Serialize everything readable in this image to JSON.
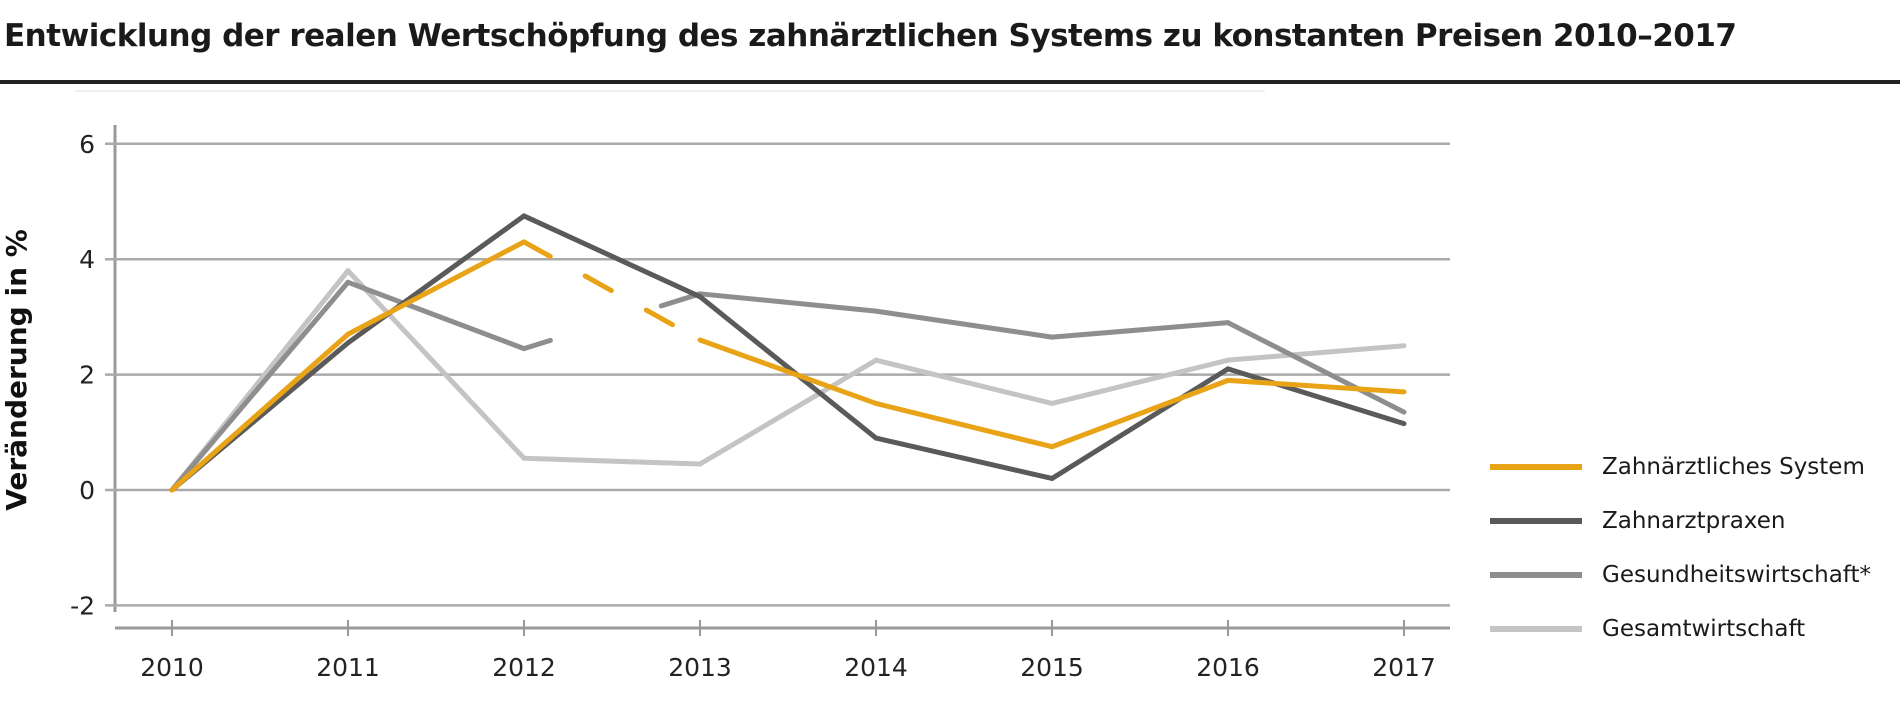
{
  "chart_data": {
    "type": "line",
    "title": "Entwicklung der realen Wertschöpfung des zahnärztlichen Systems zu konstanten Preisen 2010–2017",
    "xlabel": "",
    "ylabel": "Veränderung in %",
    "x": [
      "2010",
      "2011",
      "2012",
      "2013",
      "2014",
      "2015",
      "2016",
      "2017"
    ],
    "ylim": [
      -2,
      6
    ],
    "yticks": [
      "-2",
      "0",
      "2",
      "4",
      "6"
    ],
    "grid": true,
    "legend_position": "right",
    "series": [
      {
        "name": "Zahnärztliches System",
        "color": "#e8a317",
        "values": [
          0,
          2.7,
          4.3,
          2.6,
          1.5,
          0.75,
          1.9,
          1.7
        ],
        "dashed_segment": "2012-2013"
      },
      {
        "name": "Zahnarztpraxen",
        "color": "#5a5a5a",
        "values": [
          0,
          2.55,
          4.75,
          3.35,
          0.9,
          0.2,
          2.1,
          1.15
        ]
      },
      {
        "name": "Gesundheitswirtschaft*",
        "color": "#8e8e8e",
        "values": [
          0,
          3.6,
          2.45,
          3.4,
          3.1,
          2.65,
          2.9,
          1.35
        ],
        "gap_segment": "2012-2013"
      },
      {
        "name": "Gesamtwirtschaft",
        "color": "#c4c4c4",
        "values": [
          0,
          3.8,
          0.55,
          0.45,
          2.25,
          1.5,
          2.25,
          2.5
        ]
      }
    ]
  }
}
